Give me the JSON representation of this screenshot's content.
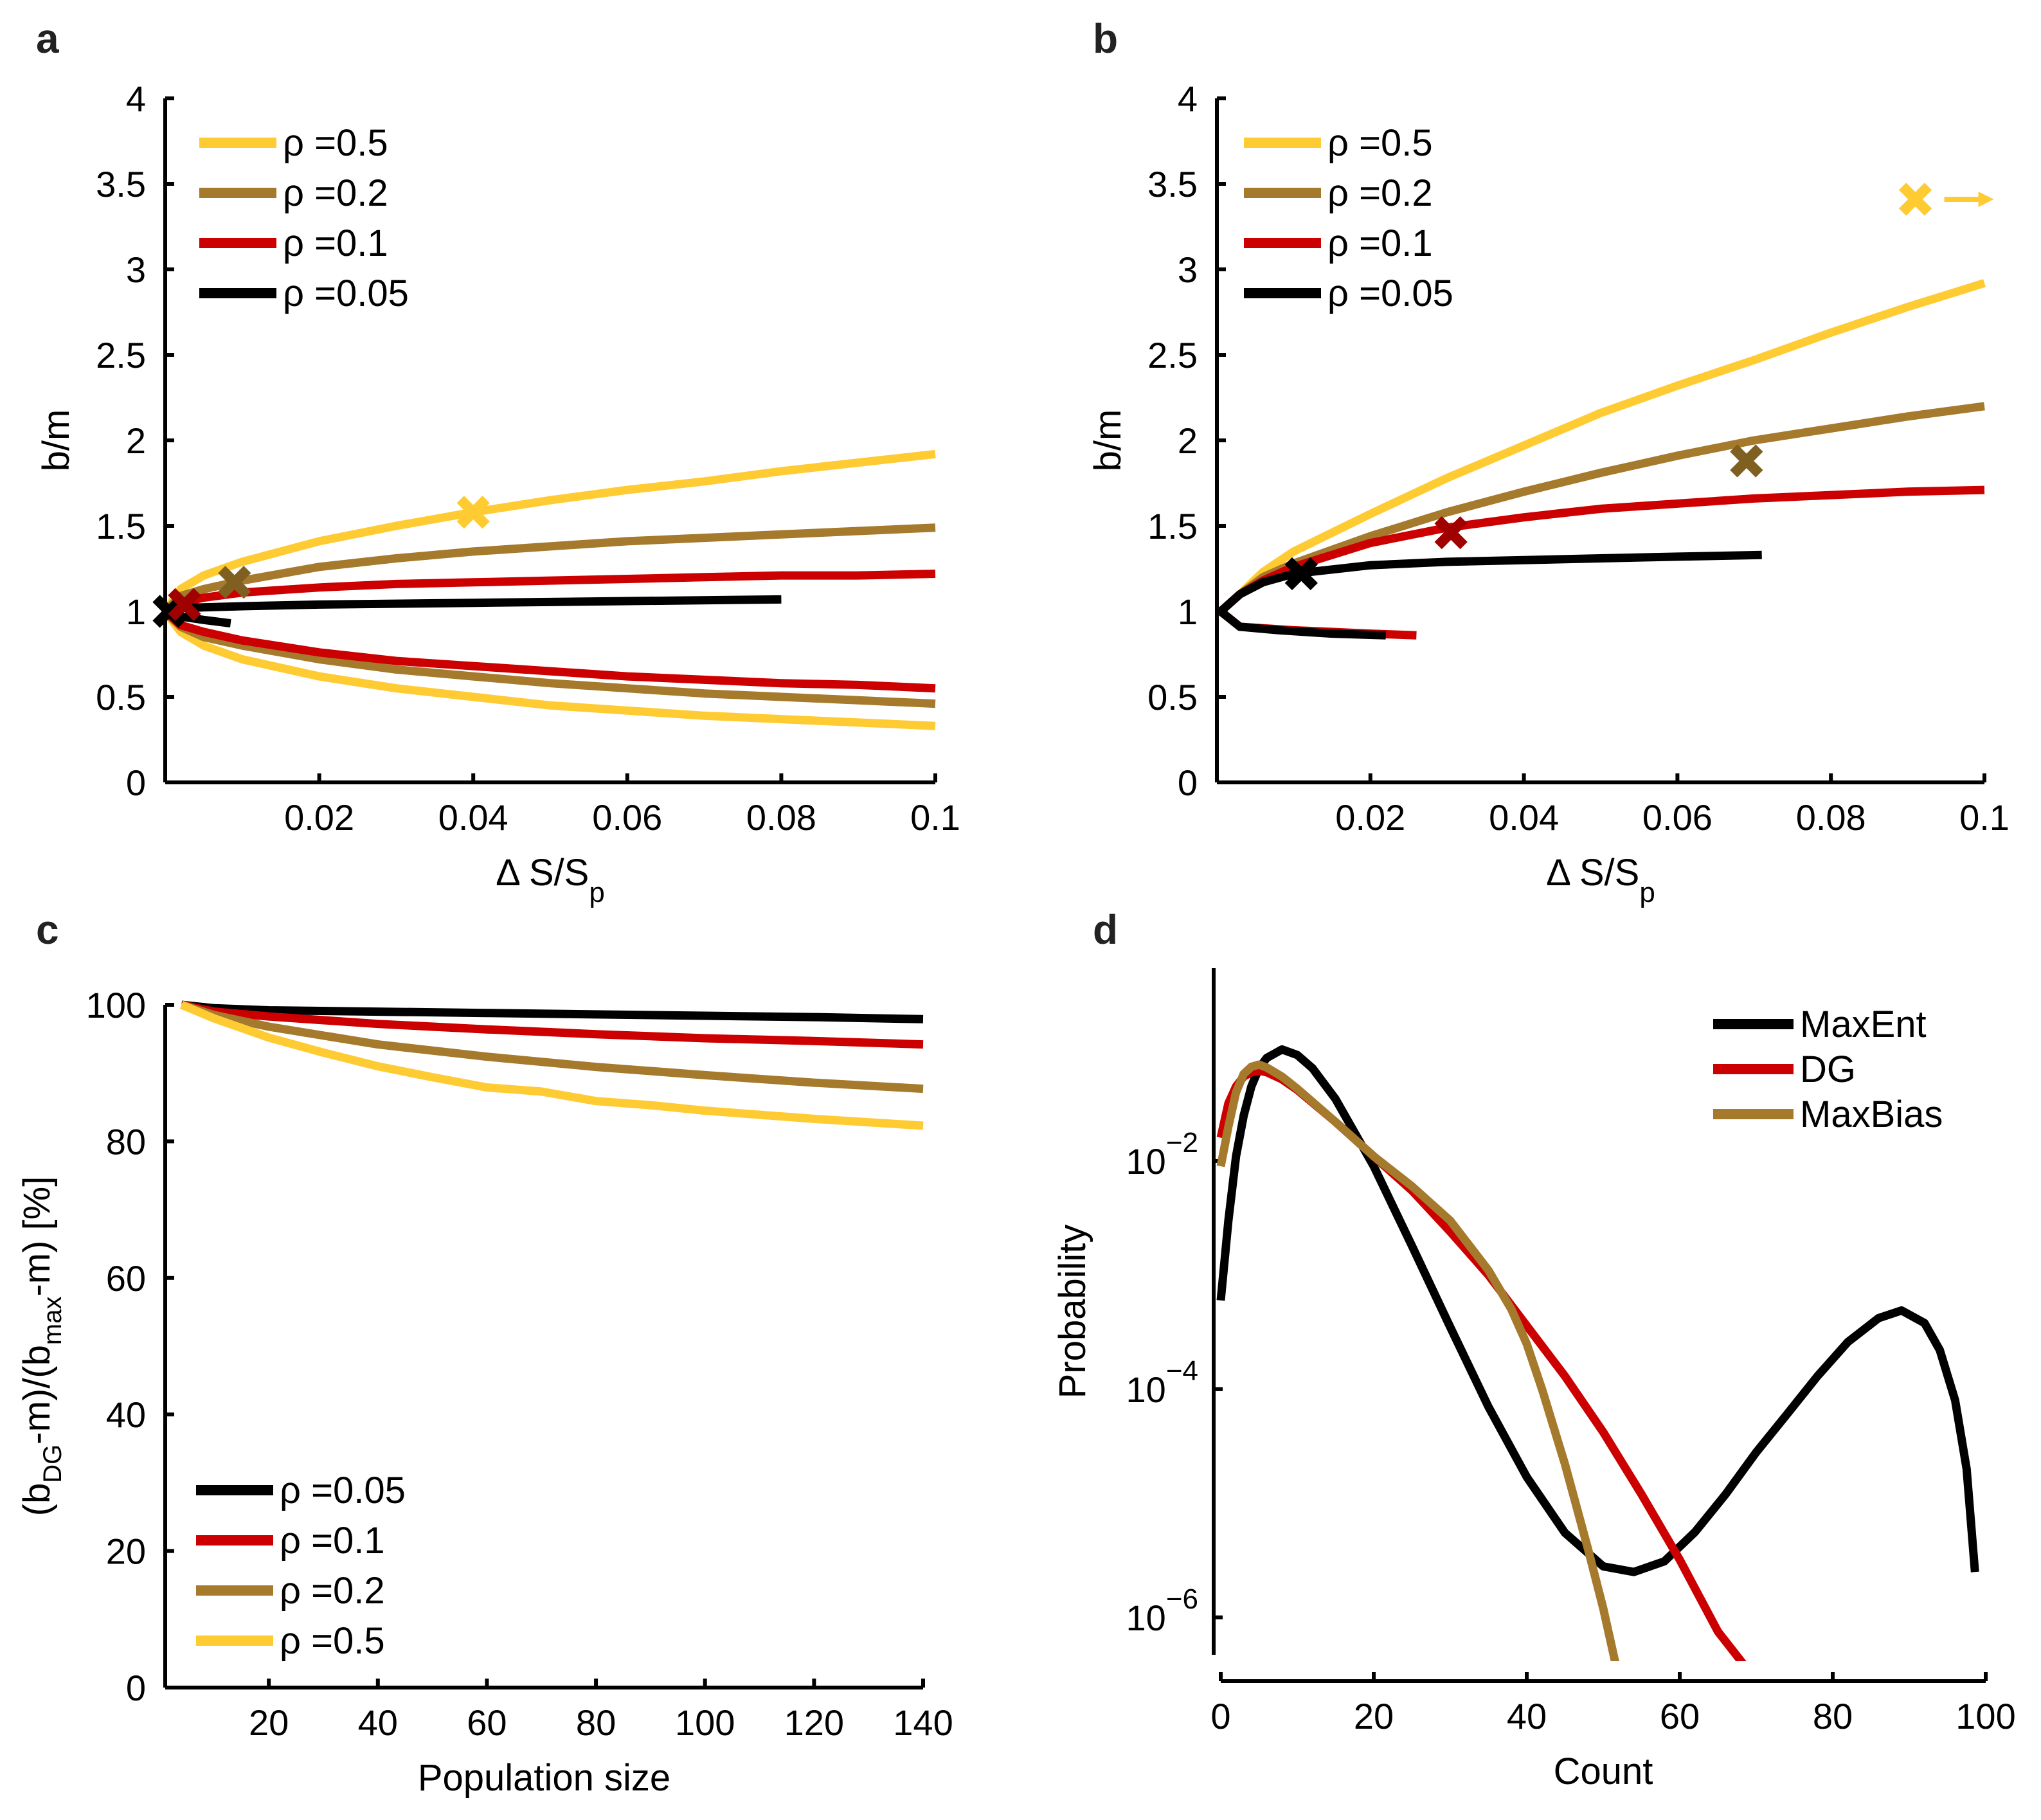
{
  "colors": {
    "rho_0.5": "#ffcb33",
    "rho_0.2": "#a57a2c",
    "rho_0.1": "#cc0000",
    "rho_0.05": "#000000",
    "marker_rho_0.2": "#7f6020",
    "marker_rho_0.1": "#a00000",
    "MaxEnt": "#000000",
    "DG": "#cc0000",
    "MaxBias": "#a57a2c"
  },
  "chart_data": [
    {
      "panel": "a",
      "type": "line",
      "xlabel": "Δ S/S",
      "xlabel_sub": "p",
      "ylabel": "b/m",
      "xlim": [
        0,
        0.1
      ],
      "ylim": [
        0,
        4
      ],
      "xticks": [
        "0.02",
        "0.04",
        "0.06",
        "0.08",
        "0.1"
      ],
      "xtick_values": [
        0.02,
        0.04,
        0.06,
        0.08,
        0.1
      ],
      "yticks": [
        "0",
        "0.5",
        "1",
        "1.5",
        "2",
        "2.5",
        "3",
        "3.5",
        "4"
      ],
      "ytick_values": [
        0,
        0.5,
        1,
        1.5,
        2,
        2.5,
        3,
        3.5,
        4
      ],
      "legend": {
        "position": "top-left",
        "entries": [
          {
            "label": "ρ =0.5",
            "key": "rho_0.5"
          },
          {
            "label": "ρ =0.2",
            "key": "rho_0.2"
          },
          {
            "label": "ρ =0.1",
            "key": "rho_0.1"
          },
          {
            "label": "ρ =0.05",
            "key": "rho_0.05"
          }
        ]
      },
      "series": [
        {
          "name": "rho=0.5 upper",
          "key": "rho_0.5",
          "x": [
            0,
            0.002,
            0.005,
            0.01,
            0.02,
            0.03,
            0.04,
            0.05,
            0.06,
            0.07,
            0.08,
            0.09,
            0.1
          ],
          "y": [
            1,
            1.13,
            1.21,
            1.29,
            1.41,
            1.5,
            1.58,
            1.65,
            1.71,
            1.76,
            1.82,
            1.87,
            1.92
          ]
        },
        {
          "name": "rho=0.5 lower",
          "key": "rho_0.5",
          "x": [
            0,
            0.002,
            0.005,
            0.01,
            0.02,
            0.03,
            0.04,
            0.05,
            0.06,
            0.07,
            0.08,
            0.09,
            0.1
          ],
          "y": [
            1,
            0.88,
            0.8,
            0.72,
            0.62,
            0.55,
            0.5,
            0.45,
            0.42,
            0.39,
            0.37,
            0.35,
            0.33
          ]
        },
        {
          "name": "rho=0.2 upper",
          "key": "rho_0.2",
          "x": [
            0,
            0.002,
            0.005,
            0.01,
            0.02,
            0.03,
            0.04,
            0.05,
            0.06,
            0.07,
            0.08,
            0.09,
            0.1
          ],
          "y": [
            1,
            1.09,
            1.13,
            1.18,
            1.26,
            1.31,
            1.35,
            1.38,
            1.41,
            1.43,
            1.45,
            1.47,
            1.49
          ]
        },
        {
          "name": "rho=0.2 lower",
          "key": "rho_0.2",
          "x": [
            0,
            0.002,
            0.005,
            0.01,
            0.02,
            0.03,
            0.04,
            0.05,
            0.06,
            0.07,
            0.08,
            0.09,
            0.1
          ],
          "y": [
            1,
            0.91,
            0.85,
            0.8,
            0.72,
            0.66,
            0.62,
            0.58,
            0.55,
            0.52,
            0.5,
            0.48,
            0.46
          ]
        },
        {
          "name": "rho=0.1 upper",
          "key": "rho_0.1",
          "x": [
            0,
            0.002,
            0.005,
            0.01,
            0.02,
            0.03,
            0.04,
            0.05,
            0.06,
            0.07,
            0.08,
            0.09,
            0.1
          ],
          "y": [
            1,
            1.05,
            1.08,
            1.11,
            1.14,
            1.16,
            1.17,
            1.18,
            1.19,
            1.2,
            1.21,
            1.21,
            1.22
          ]
        },
        {
          "name": "rho=0.1 lower",
          "key": "rho_0.1",
          "x": [
            0,
            0.002,
            0.005,
            0.01,
            0.02,
            0.03,
            0.04,
            0.05,
            0.06,
            0.07,
            0.08,
            0.09,
            0.1
          ],
          "y": [
            1,
            0.92,
            0.88,
            0.83,
            0.76,
            0.71,
            0.68,
            0.65,
            0.62,
            0.6,
            0.58,
            0.57,
            0.55
          ]
        },
        {
          "name": "rho=0.05 upper",
          "key": "rho_0.05",
          "x": [
            0,
            0.002,
            0.01,
            0.02,
            0.04,
            0.06,
            0.08
          ],
          "y": [
            1,
            1.02,
            1.03,
            1.04,
            1.05,
            1.06,
            1.07
          ]
        },
        {
          "name": "rho=0.05 lower",
          "key": "rho_0.05",
          "x": [
            0,
            0.002,
            0.005,
            0.0085
          ],
          "y": [
            1,
            0.97,
            0.95,
            0.93
          ]
        }
      ],
      "markers": [
        {
          "key": "rho_0.05",
          "color_key": "rho_0.05",
          "x": 0.0005,
          "y": 1.0
        },
        {
          "key": "rho_0.1",
          "color_key": "marker_rho_0.1",
          "x": 0.0025,
          "y": 1.04
        },
        {
          "key": "rho_0.2",
          "color_key": "marker_rho_0.2",
          "x": 0.009,
          "y": 1.17
        },
        {
          "key": "rho_0.5",
          "color_key": "rho_0.5",
          "x": 0.04,
          "y": 1.58
        }
      ]
    },
    {
      "panel": "b",
      "type": "line",
      "xlabel": "Δ S/S",
      "xlabel_sub": "p",
      "ylabel": "b/m",
      "xlim": [
        0,
        0.1
      ],
      "ylim": [
        0,
        4
      ],
      "xticks": [
        "0.02",
        "0.04",
        "0.06",
        "0.08",
        "0.1"
      ],
      "xtick_values": [
        0.02,
        0.04,
        0.06,
        0.08,
        0.1
      ],
      "yticks": [
        "0",
        "0.5",
        "1",
        "1.5",
        "2",
        "2.5",
        "3",
        "3.5",
        "4"
      ],
      "ytick_values": [
        0,
        0.5,
        1,
        1.5,
        2,
        2.5,
        3,
        3.5,
        4
      ],
      "legend": {
        "position": "top-left",
        "entries": [
          {
            "label": "ρ =0.5",
            "key": "rho_0.5"
          },
          {
            "label": "ρ =0.2",
            "key": "rho_0.2"
          },
          {
            "label": "ρ =0.1",
            "key": "rho_0.1"
          },
          {
            "label": "ρ =0.05",
            "key": "rho_0.05"
          }
        ]
      },
      "series": [
        {
          "name": "rho=0.5",
          "key": "rho_0.5",
          "x": [
            0.0005,
            0.003,
            0.006,
            0.01,
            0.02,
            0.03,
            0.04,
            0.05,
            0.06,
            0.07,
            0.08,
            0.09,
            0.1
          ],
          "y": [
            1.0,
            1.1,
            1.23,
            1.35,
            1.57,
            1.78,
            1.97,
            2.16,
            2.32,
            2.47,
            2.63,
            2.78,
            2.92
          ]
        },
        {
          "name": "rho=0.2",
          "key": "rho_0.2",
          "x": [
            0.0005,
            0.003,
            0.006,
            0.01,
            0.02,
            0.03,
            0.04,
            0.05,
            0.06,
            0.07,
            0.08,
            0.09,
            0.1
          ],
          "y": [
            1.0,
            1.1,
            1.2,
            1.28,
            1.44,
            1.58,
            1.7,
            1.81,
            1.91,
            2.0,
            2.07,
            2.14,
            2.2
          ]
        },
        {
          "name": "rho=0.1",
          "key": "rho_0.1",
          "x": [
            0.0005,
            0.003,
            0.006,
            0.01,
            0.02,
            0.03,
            0.04,
            0.05,
            0.06,
            0.07,
            0.08,
            0.09,
            0.1
          ],
          "y": [
            1.0,
            1.1,
            1.18,
            1.26,
            1.4,
            1.49,
            1.55,
            1.6,
            1.63,
            1.66,
            1.68,
            1.7,
            1.71
          ]
        },
        {
          "name": "rho=0.1 lower",
          "key": "rho_0.1",
          "x": [
            0.0005,
            0.003,
            0.01,
            0.02,
            0.026
          ],
          "y": [
            1.0,
            0.91,
            0.89,
            0.87,
            0.86
          ]
        },
        {
          "name": "rho=0.05",
          "key": "rho_0.05",
          "x": [
            0.0005,
            0.003,
            0.006,
            0.01,
            0.02,
            0.03,
            0.04,
            0.05,
            0.06,
            0.071
          ],
          "y": [
            1.0,
            1.1,
            1.17,
            1.22,
            1.27,
            1.29,
            1.3,
            1.31,
            1.32,
            1.33
          ]
        },
        {
          "name": "rho=0.05 lower",
          "key": "rho_0.05",
          "x": [
            0.0005,
            0.003,
            0.008,
            0.015,
            0.022
          ],
          "y": [
            1.0,
            0.91,
            0.89,
            0.87,
            0.86
          ]
        }
      ],
      "markers": [
        {
          "key": "rho_0.05",
          "color_key": "rho_0.05",
          "x": 0.011,
          "y": 1.22
        },
        {
          "key": "rho_0.1",
          "color_key": "marker_rho_0.1",
          "x": 0.0305,
          "y": 1.46
        },
        {
          "key": "rho_0.2",
          "color_key": "marker_rho_0.2",
          "x": 0.069,
          "y": 1.88
        },
        {
          "key": "rho_0.5",
          "color_key": "rho_0.5",
          "x": 0.091,
          "y": 3.41,
          "annotation": "arrow-right (off-scale)"
        }
      ]
    },
    {
      "panel": "c",
      "type": "line",
      "xlabel": "Population size",
      "ylabel": "(b_DG-m)/(b_max-m) [%]",
      "ylabel_parts": [
        "(b",
        "DG",
        "-m)/(b",
        "max",
        "-m) [%]"
      ],
      "xlim": [
        1,
        140
      ],
      "ylim": [
        0,
        100
      ],
      "xticks": [
        "20",
        "40",
        "60",
        "80",
        "100",
        "120",
        "140"
      ],
      "xtick_values": [
        20,
        40,
        60,
        80,
        100,
        120,
        140
      ],
      "yticks": [
        "0",
        "20",
        "40",
        "60",
        "80",
        "100"
      ],
      "ytick_values": [
        0,
        20,
        40,
        60,
        80,
        100
      ],
      "legend": {
        "position": "bottom-left",
        "entries": [
          {
            "label": "ρ =0.05",
            "key": "rho_0.05"
          },
          {
            "label": "ρ =0.1",
            "key": "rho_0.1"
          },
          {
            "label": "ρ =0.2",
            "key": "rho_0.2"
          },
          {
            "label": "ρ =0.5",
            "key": "rho_0.5"
          }
        ]
      },
      "series": [
        {
          "name": "rho=0.05",
          "key": "rho_0.05",
          "x": [
            4,
            10,
            20,
            40,
            60,
            80,
            100,
            120,
            140
          ],
          "y": [
            100,
            99.5,
            99.2,
            99,
            98.8,
            98.6,
            98.4,
            98.2,
            97.9
          ]
        },
        {
          "name": "rho=0.1",
          "key": "rho_0.1",
          "x": [
            4,
            10,
            20,
            40,
            60,
            80,
            100,
            120,
            140
          ],
          "y": [
            100,
            99,
            98.3,
            97.2,
            96.4,
            95.7,
            95.1,
            94.7,
            94.2
          ]
        },
        {
          "name": "rho=0.2",
          "key": "rho_0.2",
          "x": [
            4,
            10,
            20,
            40,
            60,
            80,
            100,
            120,
            140
          ],
          "y": [
            100,
            98.5,
            96.8,
            94.2,
            92.4,
            90.9,
            89.7,
            88.6,
            87.7
          ]
        },
        {
          "name": "rho=0.5",
          "key": "rho_0.5",
          "x": [
            4,
            10,
            20,
            30,
            40,
            50,
            60,
            70,
            80,
            90,
            100,
            120,
            140
          ],
          "y": [
            100,
            98,
            95.2,
            93,
            91,
            89.4,
            87.9,
            87.3,
            85.9,
            85.3,
            84.5,
            83.3,
            82.3
          ]
        }
      ]
    },
    {
      "panel": "d",
      "type": "line",
      "yscale": "log",
      "xlabel": "Count",
      "ylabel": "Probability",
      "xlim": [
        0,
        100
      ],
      "ylim": [
        4.7e-07,
        0.49
      ],
      "xticks": [
        "0",
        "20",
        "40",
        "60",
        "80",
        "100"
      ],
      "xtick_values": [
        0,
        20,
        40,
        60,
        80,
        100
      ],
      "yticks": [
        "10^-2",
        "10^-4",
        "10^-6"
      ],
      "ytick_values": [
        0.01,
        0.0001,
        1e-06
      ],
      "ytick_exponents": [
        "−2",
        "−4",
        "−6"
      ],
      "legend": {
        "position": "top-right",
        "entries": [
          {
            "label": "MaxEnt",
            "key": "MaxEnt"
          },
          {
            "label": "DG",
            "key": "DG"
          },
          {
            "label": "MaxBias",
            "key": "MaxBias"
          }
        ]
      },
      "series": [
        {
          "name": "MaxEnt",
          "key": "MaxEnt",
          "x": [
            0,
            1,
            2,
            3,
            4,
            5,
            6,
            8,
            10,
            12,
            15,
            20,
            25,
            30,
            35,
            40,
            45,
            50,
            54,
            58,
            62,
            66,
            70,
            74,
            78,
            82,
            86,
            89,
            92,
            94,
            96,
            97.5,
            98.6
          ],
          "y": [
            0.0006,
            0.003,
            0.011,
            0.025,
            0.045,
            0.065,
            0.08,
            0.095,
            0.085,
            0.065,
            0.035,
            0.009,
            0.0018,
            0.00035,
            7e-05,
            1.7e-05,
            5.5e-06,
            2.8e-06,
            2.5e-06,
            3.1e-06,
            5.6e-06,
            1.2e-05,
            2.8e-05,
            6e-05,
            0.00013,
            0.00026,
            0.00042,
            0.00049,
            0.00038,
            0.00022,
            8e-05,
            2e-05,
            2.5e-06
          ]
        },
        {
          "name": "DG",
          "key": "DG",
          "x": [
            0,
            1,
            2,
            3,
            4,
            5,
            6,
            8,
            10,
            15,
            20,
            25,
            30,
            35,
            40,
            45,
            50,
            55,
            60,
            65,
            70,
            72
          ],
          "y": [
            0.016,
            0.032,
            0.045,
            0.055,
            0.06,
            0.062,
            0.06,
            0.052,
            0.042,
            0.022,
            0.011,
            0.0055,
            0.0024,
            0.001,
            0.00036,
            0.00013,
            4.2e-05,
            1.2e-05,
            3.2e-06,
            7.5e-07,
            1.7e-07,
            9e-08
          ]
        },
        {
          "name": "MaxBias",
          "key": "MaxBias",
          "x": [
            0,
            1,
            2,
            3,
            4,
            5,
            6,
            8,
            10,
            15,
            20,
            25,
            30,
            35,
            38,
            40,
            42,
            45,
            48,
            50,
            52,
            52.8
          ],
          "y": [
            0.009,
            0.02,
            0.04,
            0.058,
            0.067,
            0.07,
            0.066,
            0.055,
            0.043,
            0.022,
            0.011,
            0.006,
            0.003,
            0.0011,
            0.0005,
            0.00025,
            0.0001,
            2.2e-05,
            4e-06,
            1.2e-06,
            3e-07,
            2.2e-07
          ]
        }
      ]
    }
  ],
  "panels": {
    "a": {
      "label": "a"
    },
    "b": {
      "label": "b"
    },
    "c": {
      "label": "c"
    },
    "d": {
      "label": "d"
    }
  }
}
